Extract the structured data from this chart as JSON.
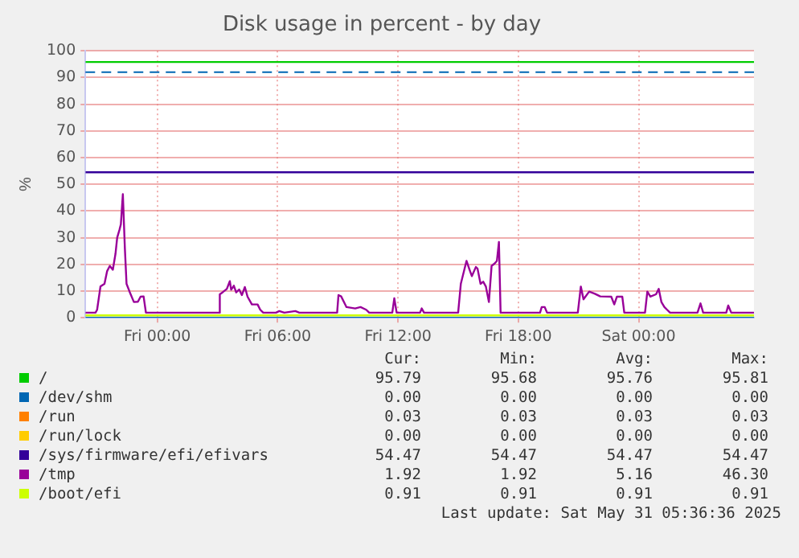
{
  "chart_data": {
    "type": "line",
    "title": "Disk usage in percent - by day",
    "ylabel": "%",
    "xlim": [
      "2025-05-29T20:25",
      "2025-05-31T05:45"
    ],
    "ylim": [
      0,
      100
    ],
    "xticks": [
      {
        "value": "2025-05-30T00:00",
        "label": "Fri 00:00"
      },
      {
        "value": "2025-05-30T06:00",
        "label": "Fri 06:00"
      },
      {
        "value": "2025-05-30T12:00",
        "label": "Fri 12:00"
      },
      {
        "value": "2025-05-30T18:00",
        "label": "Fri 18:00"
      },
      {
        "value": "2025-05-31T00:00",
        "label": "Sat 00:00"
      }
    ],
    "yticks": [
      0,
      10,
      20,
      30,
      40,
      50,
      60,
      70,
      80,
      90,
      100
    ],
    "series": [
      {
        "name": "/",
        "color": "#00cc00",
        "x": [
          "2025-05-29T20:25",
          "2025-05-31T05:45"
        ],
        "values": [
          95.8,
          95.8
        ]
      },
      {
        "name": "/dev/shm",
        "color": "#0066b3",
        "x": [
          "2025-05-29T20:25",
          "2025-05-31T05:45"
        ],
        "values": [
          0,
          0
        ]
      },
      {
        "name": "/run",
        "color": "#ff8000"
      },
      {
        "name": "/run/lock",
        "color": "#ffcc00"
      },
      {
        "name": "/sys/firmware/efi/efivars",
        "color": "#330099",
        "x": [
          "2025-05-29T20:25",
          "2025-05-31T05:45"
        ],
        "values": [
          54.5,
          54.5
        ]
      },
      {
        "name": "/tmp",
        "color": "#990099",
        "x": [
          "2025-05-29T20:25",
          "2025-05-29T20:55",
          "2025-05-29T21:00",
          "2025-05-29T21:10",
          "2025-05-29T21:22",
          "2025-05-29T21:30",
          "2025-05-29T21:38",
          "2025-05-29T21:47",
          "2025-05-29T21:55",
          "2025-05-29T22:00",
          "2025-05-29T22:07",
          "2025-05-29T22:11",
          "2025-05-29T22:17",
          "2025-05-29T22:23",
          "2025-05-29T22:28",
          "2025-05-29T22:37",
          "2025-05-29T22:50",
          "2025-05-29T23:02",
          "2025-05-29T23:10",
          "2025-05-29T23:19",
          "2025-05-29T23:26",
          "2025-05-30T03:04",
          "2025-05-30T03:07",
          "2025-05-30T03:15",
          "2025-05-30T03:28",
          "2025-05-30T03:37",
          "2025-05-30T03:41",
          "2025-05-30T03:49",
          "2025-05-30T03:56",
          "2025-05-30T04:05",
          "2025-05-30T04:13",
          "2025-05-30T04:22",
          "2025-05-30T04:30",
          "2025-05-30T04:43",
          "2025-05-30T05:00",
          "2025-05-30T05:08",
          "2025-05-30T05:17",
          "2025-05-30T05:55",
          "2025-05-30T06:05",
          "2025-05-30T06:20",
          "2025-05-30T06:53",
          "2025-05-30T07:05",
          "2025-05-30T08:58",
          "2025-05-30T09:02",
          "2025-05-30T09:10",
          "2025-05-30T09:26",
          "2025-05-30T09:52",
          "2025-05-30T10:08",
          "2025-05-30T10:25",
          "2025-05-30T10:34",
          "2025-05-30T11:43",
          "2025-05-30T11:49",
          "2025-05-30T11:56",
          "2025-05-30T13:06",
          "2025-05-30T13:11",
          "2025-05-30T13:18",
          "2025-05-30T15:00",
          "2025-05-30T15:08",
          "2025-05-30T15:25",
          "2025-05-30T15:34",
          "2025-05-30T15:41",
          "2025-05-30T15:53",
          "2025-05-30T15:58",
          "2025-05-30T16:07",
          "2025-05-30T16:15",
          "2025-05-30T16:23",
          "2025-05-30T16:32",
          "2025-05-30T16:40",
          "2025-05-30T16:49",
          "2025-05-30T16:56",
          "2025-05-30T17:02",
          "2025-05-30T17:07",
          "2025-05-30T19:05",
          "2025-05-30T19:10",
          "2025-05-30T19:19",
          "2025-05-30T19:26",
          "2025-05-30T20:58",
          "2025-05-30T21:07",
          "2025-05-30T21:15",
          "2025-05-30T21:32",
          "2025-05-30T21:49",
          "2025-05-30T22:05",
          "2025-05-30T22:38",
          "2025-05-30T22:47",
          "2025-05-30T22:55",
          "2025-05-30T23:11",
          "2025-05-30T23:17",
          "2025-05-31T00:19",
          "2025-05-31T00:26",
          "2025-05-31T00:35",
          "2025-05-31T00:52",
          "2025-05-31T01:00",
          "2025-05-31T01:08",
          "2025-05-31T01:17",
          "2025-05-31T01:25",
          "2025-05-31T01:34",
          "2025-05-31T02:56",
          "2025-05-31T03:05",
          "2025-05-31T03:13",
          "2025-05-31T04:22",
          "2025-05-31T04:28",
          "2025-05-31T04:37",
          "2025-05-31T05:45"
        ],
        "values": [
          1.9,
          1.9,
          3,
          11.7,
          12.7,
          17.5,
          19.4,
          18,
          24,
          30,
          33,
          35,
          46.3,
          26,
          12.7,
          9.8,
          5.9,
          6,
          7.9,
          8,
          1.9,
          1.9,
          8.8,
          9.5,
          10.8,
          13.7,
          10.5,
          12,
          9.5,
          10.6,
          8.5,
          11.5,
          7.9,
          5,
          5,
          3,
          1.9,
          1.9,
          2.5,
          1.9,
          2.5,
          1.9,
          1.9,
          8.5,
          8,
          4,
          3.5,
          4,
          3,
          1.9,
          1.9,
          7.3,
          1.9,
          1.9,
          3.5,
          1.9,
          1.9,
          12.7,
          21.3,
          18,
          15.6,
          19,
          18.4,
          12.7,
          13.5,
          11.7,
          5.9,
          19.4,
          20.3,
          21.3,
          28.4,
          1.9,
          1.9,
          4,
          4,
          1.9,
          1.9,
          11.7,
          6.9,
          9.8,
          9,
          8,
          7.9,
          5,
          7.9,
          7.9,
          1.9,
          1.9,
          9.8,
          7.9,
          8.8,
          10.8,
          5.9,
          4,
          3,
          1.9,
          1.9,
          5.4,
          1.9,
          1.9,
          4.6,
          1.9,
          1.9
        ]
      },
      {
        "name": "/boot/efi",
        "color": "#ccff00",
        "x": [
          "2025-05-29T20:25",
          "2025-05-31T05:45"
        ],
        "values": [
          0.9,
          0.9
        ]
      }
    ],
    "ref_lines": [
      {
        "axis": "y",
        "value": 92,
        "color": "#0066b3",
        "line_style": "dashed"
      }
    ],
    "grid": true,
    "legend": "bottom",
    "marker": "none",
    "line_style": "solid",
    "annotations": [
      "Cur:",
      "Min:",
      "Avg:",
      "Max:",
      "95.79",
      "95.68",
      "95.76",
      "95.81",
      "0.00",
      "0.00",
      "0.00",
      "0.00",
      "0.03",
      "0.03",
      "0.03",
      "0.03",
      "0.00",
      "0.00",
      "0.00",
      "0.00",
      "54.47",
      "54.47",
      "54.47",
      "54.47",
      "1.92",
      "1.92",
      "5.16",
      "46.30",
      "0.91",
      "0.91",
      "0.91",
      "0.91",
      "Last update: Sat May 31 05:36:36 2025"
    ]
  }
}
